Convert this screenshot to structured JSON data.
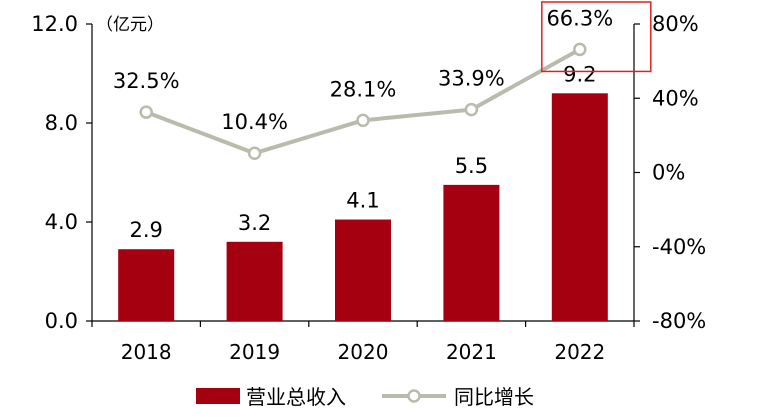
{
  "chart_data": {
    "type": "bar",
    "categories": [
      "2018",
      "2019",
      "2020",
      "2021",
      "2022"
    ],
    "unit_label": "（亿元）",
    "series": [
      {
        "name": "营业总收入",
        "type": "bar",
        "axis": "left",
        "values": [
          2.9,
          3.2,
          4.1,
          5.5,
          9.2
        ],
        "labels": [
          "2.9",
          "3.2",
          "4.1",
          "5.5",
          "9.2"
        ],
        "color": "#a5000f"
      },
      {
        "name": "同比增长",
        "type": "line",
        "axis": "right",
        "values": [
          32.5,
          10.4,
          28.1,
          33.9,
          66.3
        ],
        "labels": [
          "32.5%",
          "10.4%",
          "28.1%",
          "33.9%",
          "66.3%"
        ],
        "color": "#b9bcad"
      }
    ],
    "left_axis": {
      "ylim": [
        0,
        12
      ],
      "ticks": [
        0,
        4,
        8,
        12
      ],
      "tick_labels": [
        "0.0",
        "4.0",
        "8.0",
        "12.0"
      ]
    },
    "right_axis": {
      "ylim": [
        -80,
        80
      ],
      "ticks": [
        -80,
        -40,
        0,
        40,
        80
      ],
      "tick_labels": [
        "-80%",
        "-40%",
        "0%",
        "40%",
        "80%"
      ]
    },
    "highlight": {
      "category": "2022",
      "series": "同比增长",
      "color": "#e02020"
    },
    "grid": false,
    "legend": "bottom"
  }
}
